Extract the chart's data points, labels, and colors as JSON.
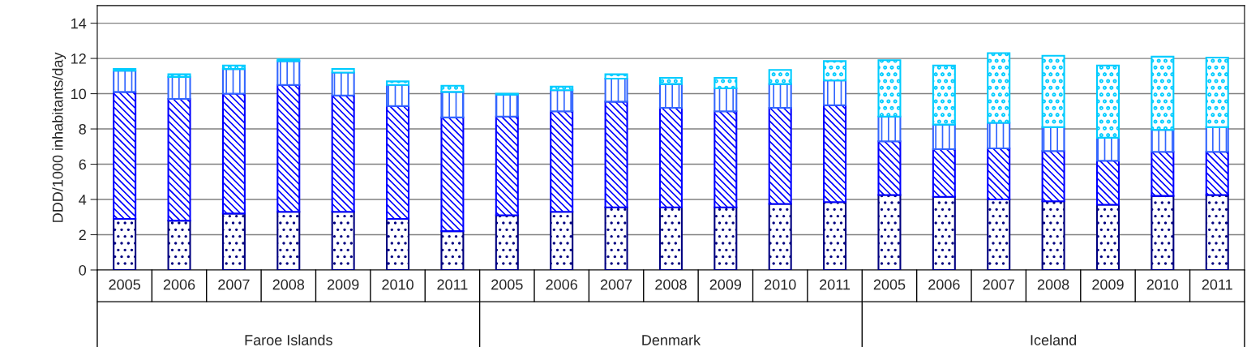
{
  "chart_data": {
    "type": "bar",
    "stacked": true,
    "ylabel": "DDD/1000 inhabitants/day",
    "categories": [
      "2005",
      "2006",
      "2007",
      "2008",
      "2009",
      "2010",
      "2011",
      "2005",
      "2006",
      "2007",
      "2008",
      "2009",
      "2010",
      "2011",
      "2005",
      "2006",
      "2007",
      "2008",
      "2009",
      "2010",
      "2011"
    ],
    "annotations": [
      "Faroe Islands",
      "Denmark",
      "Iceland"
    ],
    "series": [
      {
        "color": "#000080",
        "values": [
          2.9,
          2.8,
          3.2,
          3.3,
          3.3,
          2.9,
          2.2,
          3.1,
          3.3,
          3.55,
          3.55,
          3.55,
          3.75,
          3.85,
          4.25,
          4.15,
          4.0,
          3.9,
          3.7,
          4.2,
          4.25
        ]
      },
      {
        "color": "#0000ff",
        "values": [
          7.2,
          6.9,
          6.8,
          7.2,
          6.6,
          6.4,
          6.45,
          5.6,
          5.7,
          6.0,
          5.65,
          5.45,
          5.45,
          5.5,
          3.05,
          2.7,
          2.9,
          2.85,
          2.5,
          2.5,
          2.45
        ]
      },
      {
        "color": "#3366ff",
        "values": [
          1.2,
          1.25,
          1.4,
          1.35,
          1.3,
          1.2,
          1.45,
          1.25,
          1.2,
          1.3,
          1.35,
          1.3,
          1.35,
          1.4,
          1.4,
          1.4,
          1.45,
          1.35,
          1.3,
          1.25,
          1.4
        ]
      },
      {
        "color": "#00ccff",
        "values": [
          0.1,
          0.15,
          0.2,
          0.1,
          0.2,
          0.2,
          0.35,
          0.05,
          0.2,
          0.25,
          0.35,
          0.6,
          0.8,
          1.1,
          3.2,
          3.35,
          3.95,
          4.05,
          4.1,
          4.15,
          3.95
        ]
      }
    ],
    "ylim": [
      0,
      15
    ],
    "yticks": [
      0,
      2,
      4,
      6,
      8,
      10,
      12,
      14
    ],
    "grid": "y",
    "legend": false
  }
}
